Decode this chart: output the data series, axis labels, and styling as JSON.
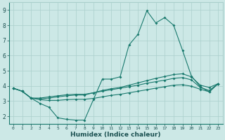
{
  "xlabel": "Humidex (Indice chaleur)",
  "background_color": "#cce8e6",
  "grid_color": "#aacfcc",
  "line_color": "#1a7a6e",
  "xlim": [
    -0.5,
    23.5
  ],
  "ylim": [
    1.5,
    9.5
  ],
  "xticks": [
    0,
    1,
    2,
    3,
    4,
    5,
    6,
    7,
    8,
    9,
    10,
    11,
    12,
    13,
    14,
    15,
    16,
    17,
    18,
    19,
    20,
    21,
    22,
    23
  ],
  "yticks": [
    2,
    3,
    4,
    5,
    6,
    7,
    8,
    9
  ],
  "line1_x": [
    0,
    1,
    2,
    3,
    4,
    5,
    6,
    7,
    8,
    9,
    10,
    11,
    12,
    13,
    14,
    15,
    16,
    17,
    18,
    19,
    20,
    21,
    22,
    23
  ],
  "line1_y": [
    3.85,
    3.65,
    3.2,
    2.85,
    2.6,
    1.9,
    1.8,
    1.75,
    1.75,
    3.1,
    4.45,
    4.45,
    4.6,
    6.7,
    7.4,
    8.95,
    8.15,
    8.5,
    8.0,
    6.35,
    4.65,
    3.95,
    3.6,
    4.15
  ],
  "line2_x": [
    0,
    1,
    2,
    3,
    4,
    5,
    6,
    7,
    8,
    9,
    10,
    11,
    12,
    13,
    14,
    15,
    16,
    17,
    18,
    19,
    20,
    21,
    22,
    23
  ],
  "line2_y": [
    3.85,
    3.65,
    3.2,
    3.15,
    3.2,
    3.28,
    3.35,
    3.4,
    3.4,
    3.55,
    3.7,
    3.82,
    3.9,
    4.05,
    4.2,
    4.35,
    4.5,
    4.62,
    4.75,
    4.8,
    4.6,
    4.05,
    3.9,
    4.15
  ],
  "line3_x": [
    0,
    1,
    2,
    3,
    4,
    5,
    6,
    7,
    8,
    9,
    10,
    11,
    12,
    13,
    14,
    15,
    16,
    17,
    18,
    19,
    20,
    21,
    22,
    23
  ],
  "line3_y": [
    3.85,
    3.65,
    3.2,
    3.1,
    3.05,
    3.05,
    3.1,
    3.12,
    3.12,
    3.18,
    3.28,
    3.38,
    3.45,
    3.55,
    3.65,
    3.75,
    3.85,
    3.95,
    4.05,
    4.08,
    3.98,
    3.78,
    3.62,
    4.15
  ],
  "line4_x": [
    0,
    1,
    2,
    3,
    4,
    5,
    6,
    7,
    8,
    9,
    10,
    11,
    12,
    13,
    14,
    15,
    16,
    17,
    18,
    19,
    20,
    21,
    22,
    23
  ],
  "line4_y": [
    3.85,
    3.65,
    3.2,
    3.2,
    3.28,
    3.35,
    3.42,
    3.45,
    3.45,
    3.55,
    3.65,
    3.75,
    3.85,
    3.95,
    4.05,
    4.18,
    4.28,
    4.38,
    4.5,
    4.55,
    4.4,
    3.9,
    3.7,
    4.15
  ]
}
